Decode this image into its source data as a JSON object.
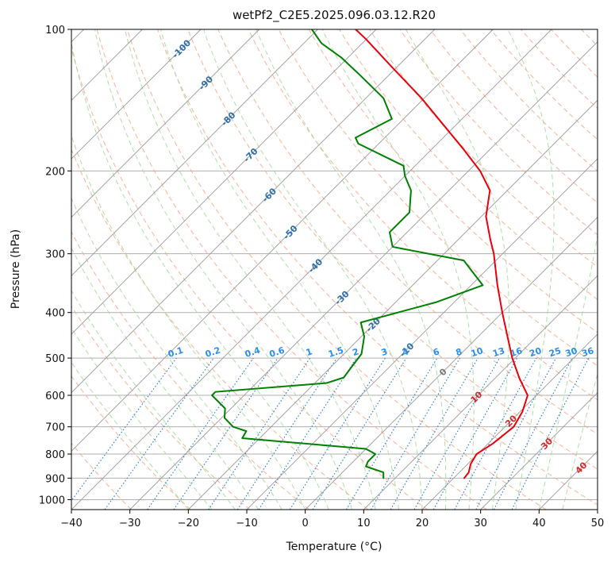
{
  "chart_data": {
    "type": "line",
    "title": "wetPf2_C2E5.2025.096.03.12.R20",
    "xlabel": "Temperature (°C)",
    "ylabel": "Pressure (hPa)",
    "xlim": [
      -40,
      50
    ],
    "ylim": [
      1050,
      100
    ],
    "y_scale": "log",
    "skew_degrees": 45,
    "x_ticks": [
      -40,
      -30,
      -20,
      -10,
      0,
      10,
      20,
      30,
      40,
      50
    ],
    "x_tick_labels": [
      "−40",
      "−30",
      "−20",
      "−10",
      "0",
      "10",
      "20",
      "30",
      "40",
      "50"
    ],
    "y_ticks": [
      100,
      200,
      300,
      400,
      500,
      600,
      700,
      800,
      900,
      1000
    ],
    "y_tick_labels": [
      "100",
      "200",
      "300",
      "400",
      "500",
      "600",
      "700",
      "800",
      "900",
      "1000"
    ],
    "grid": true,
    "colors": {
      "temperature": "#e8000b",
      "dewpoint": "#008000",
      "skewed_isotherms": "#999999",
      "dry_adiabats": "#f4a582",
      "moist_adiabats": "#a6d9a0",
      "mixing_ratio": "#1f77d4",
      "isotherm_labels": "#2b6ea8",
      "warm_isotherm_labels": "#d62728",
      "zero_isotherm_label": "#777777"
    },
    "series": [
      {
        "role": "temperature",
        "points": [
          [
            21.8,
            900
          ],
          [
            21.6,
            875
          ],
          [
            20.5,
            840
          ],
          [
            19.8,
            800
          ],
          [
            20.8,
            760
          ],
          [
            21.5,
            700
          ],
          [
            20.4,
            650
          ],
          [
            18.5,
            600
          ],
          [
            14.0,
            550
          ],
          [
            9.5,
            500
          ],
          [
            5.0,
            450
          ],
          [
            0.0,
            400
          ],
          [
            -5.5,
            350
          ],
          [
            -11.5,
            300
          ],
          [
            -14.5,
            280
          ],
          [
            -19.2,
            250
          ],
          [
            -23.0,
            220
          ],
          [
            -28.0,
            200
          ],
          [
            -34.5,
            180
          ],
          [
            -42.0,
            160
          ],
          [
            -50.5,
            140
          ],
          [
            -61.0,
            120
          ],
          [
            -70.0,
            105
          ],
          [
            -73.5,
            100
          ]
        ]
      },
      {
        "role": "dewpoint",
        "points": [
          [
            8.0,
            900
          ],
          [
            7.0,
            875
          ],
          [
            3.0,
            850
          ],
          [
            2.5,
            830
          ],
          [
            2.5,
            800
          ],
          [
            0.0,
            780
          ],
          [
            -23.0,
            740
          ],
          [
            -23.5,
            715
          ],
          [
            -26.5,
            700
          ],
          [
            -29.5,
            670
          ],
          [
            -31.0,
            640
          ],
          [
            -35.5,
            600
          ],
          [
            -35.5,
            590
          ],
          [
            -18.0,
            565
          ],
          [
            -16.0,
            550
          ],
          [
            -16.5,
            520
          ],
          [
            -17.0,
            490
          ],
          [
            -19.5,
            450
          ],
          [
            -22.5,
            420
          ],
          [
            -13.0,
            380
          ],
          [
            -8.0,
            350
          ],
          [
            -15.5,
            310
          ],
          [
            -30.0,
            290
          ],
          [
            -33.0,
            270
          ],
          [
            -33.0,
            245
          ],
          [
            -36.5,
            220
          ],
          [
            -40.0,
            205
          ],
          [
            -42.0,
            195
          ],
          [
            -53.5,
            175
          ],
          [
            -55.0,
            170
          ],
          [
            -52.0,
            155
          ],
          [
            -57.0,
            140
          ],
          [
            -65.0,
            125
          ],
          [
            -71.0,
            115
          ],
          [
            -77.0,
            107
          ],
          [
            -81.0,
            100
          ]
        ]
      }
    ],
    "isotherm_labels": [
      {
        "t": -100,
        "p": 110,
        "text": "-100"
      },
      {
        "t": -90,
        "p": 130,
        "text": "-90"
      },
      {
        "t": -80,
        "p": 155,
        "text": "-80"
      },
      {
        "t": -70,
        "p": 185,
        "text": "-70"
      },
      {
        "t": -60,
        "p": 225,
        "text": "-60"
      },
      {
        "t": -50,
        "p": 270,
        "text": "-50"
      },
      {
        "t": -40,
        "p": 318,
        "text": "-40"
      },
      {
        "t": -30,
        "p": 372,
        "text": "-30"
      },
      {
        "t": -20,
        "p": 425,
        "text": "-20"
      },
      {
        "t": -10,
        "p": 480,
        "text": "-10"
      },
      {
        "t": 0,
        "p": 535,
        "text": "0"
      },
      {
        "t": 10,
        "p": 605,
        "text": "10"
      },
      {
        "t": 20,
        "p": 680,
        "text": "20"
      },
      {
        "t": 30,
        "p": 760,
        "text": "30"
      },
      {
        "t": 40,
        "p": 855,
        "text": "40"
      }
    ],
    "mixing_ratio_labels": [
      "0.1",
      "0.2",
      "0.4",
      "0.6",
      "1",
      "1.5",
      "2",
      "3",
      "4",
      "6",
      "8",
      "10",
      "13",
      "16",
      "20",
      "25",
      "30",
      "36"
    ]
  }
}
